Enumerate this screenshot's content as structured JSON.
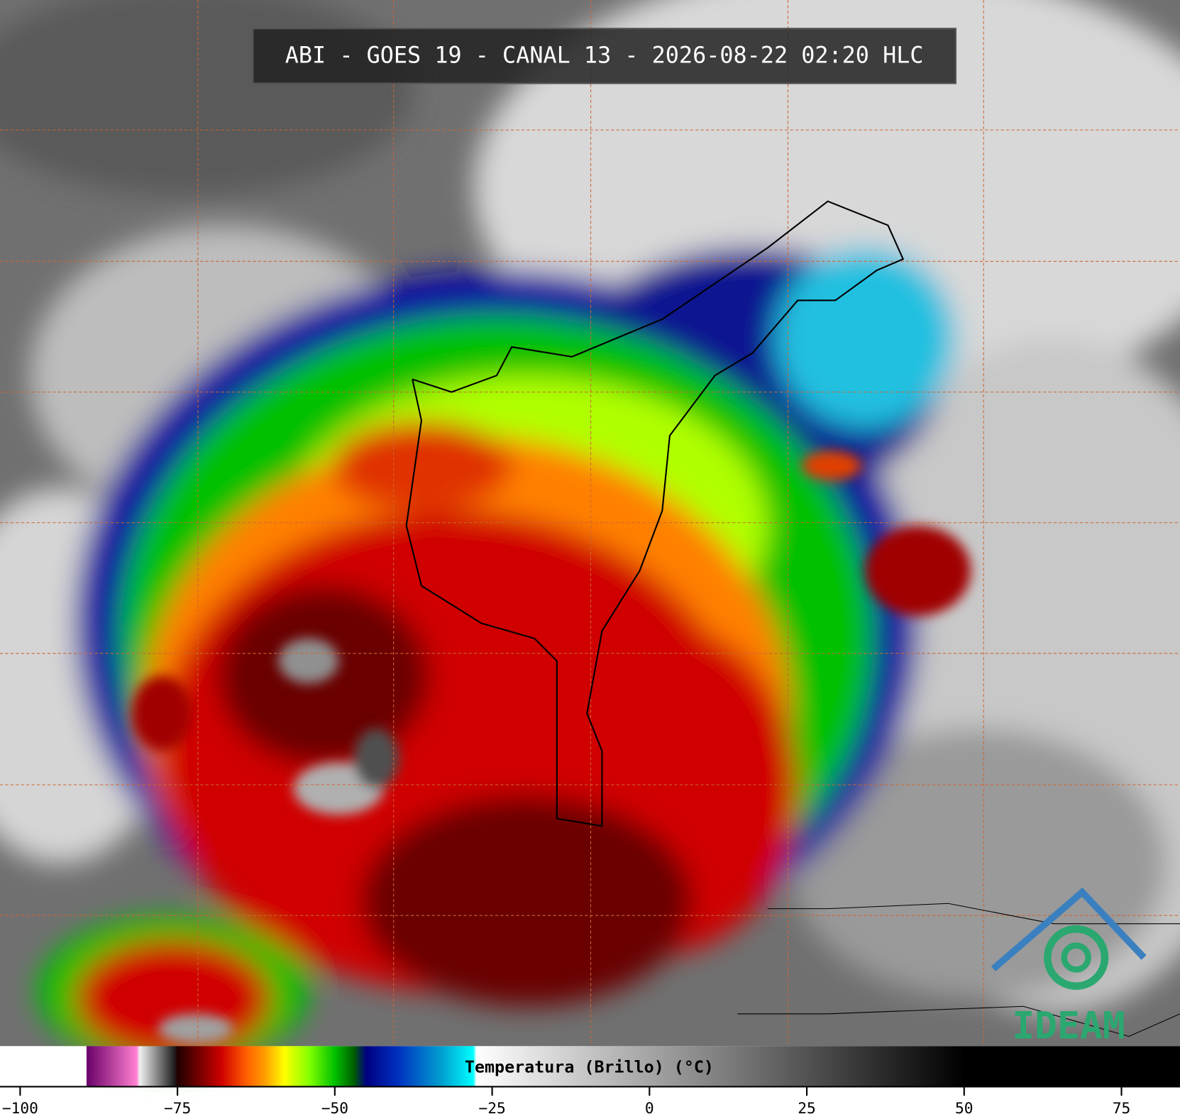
{
  "title": "ABI - GOES 19 - CANAL 13 - 2026-08-22 02:20 HLC",
  "colorbar": {
    "label": "Temperatura (Brillo) (°C)",
    "lim": [
      -103.2,
      84.3
    ],
    "ticks": [
      {
        "value": -100,
        "label": "−100"
      },
      {
        "value": -75,
        "label": "−75"
      },
      {
        "value": -50,
        "label": "−50"
      },
      {
        "value": -25,
        "label": "−25"
      },
      0,
      25,
      50,
      75
    ],
    "stops": [
      {
        "value": -103.2,
        "color": "#ffffff"
      },
      {
        "value": -89.5,
        "color": "#ffffff"
      },
      {
        "value": -89.4,
        "color": "#6a006a"
      },
      {
        "value": -81.5,
        "color": "#ff80d0"
      },
      {
        "value": -81,
        "color": "#f0f0f0"
      },
      {
        "value": -75.5,
        "color": "#202020"
      },
      {
        "value": -75,
        "color": "#200000"
      },
      {
        "value": -72,
        "color": "#6a0000"
      },
      {
        "value": -68,
        "color": "#d00000"
      },
      {
        "value": -64,
        "color": "#ff6000"
      },
      {
        "value": -61,
        "color": "#ffa000"
      },
      {
        "value": -58,
        "color": "#ffff00"
      },
      {
        "value": -54,
        "color": "#80ff00"
      },
      {
        "value": -50,
        "color": "#00c000"
      },
      {
        "value": -47,
        "color": "#006000"
      },
      {
        "value": -45,
        "color": "#000080"
      },
      {
        "value": -40,
        "color": "#0030c0"
      },
      {
        "value": -33,
        "color": "#00a0d0"
      },
      {
        "value": -28,
        "color": "#00ffff"
      },
      {
        "value": -27.5,
        "color": "#ffffff"
      },
      {
        "value": 50,
        "color": "#000000"
      },
      {
        "value": 84.3,
        "color": "#000000"
      }
    ]
  },
  "logo": {
    "text": "IDEAM"
  }
}
